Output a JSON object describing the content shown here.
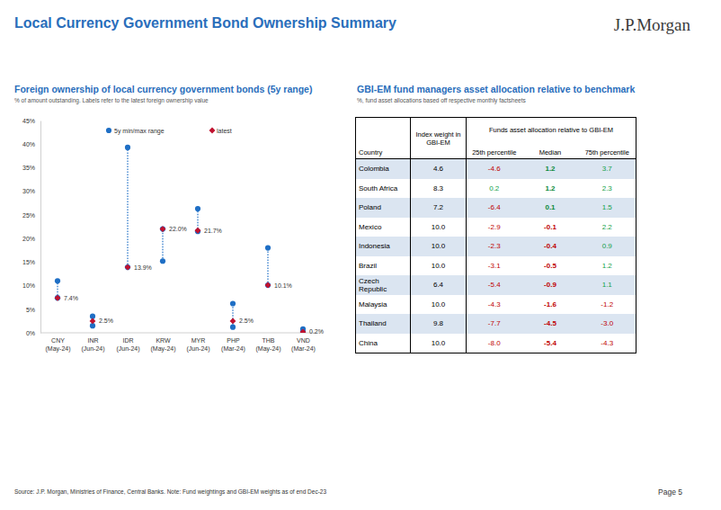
{
  "page": {
    "title": "Local Currency Government Bond Ownership Summary",
    "logo": "J.P.Morgan",
    "source": "Source: J.P. Morgan, Ministries of Finance, Central Banks. Note: Fund weightings and GBI-EM weights as of end Dec-23",
    "page_number": "Page 5"
  },
  "chart_data": {
    "type": "range",
    "title": "Foreign ownership of local currency government bonds (5y range)",
    "subtitle": "% of amount outstanding. Labels refer to the latest foreign ownership value",
    "categories": [
      "CNY (May-24)",
      "INR (Jun-24)",
      "IDR (Jun-24)",
      "KRW (May-24)",
      "MYR (Jun-24)",
      "PHP (Mar-24)",
      "THB (May-24)",
      "VND (Mar-24)"
    ],
    "series": [
      {
        "name": "5y min/max range",
        "color": "#1f6fc5",
        "marker": "circle",
        "line_style": "dotted",
        "low": [
          7.4,
          1.5,
          13.9,
          15.2,
          21.5,
          1.2,
          10.1,
          0.2
        ],
        "high": [
          11.0,
          3.5,
          39.3,
          22.0,
          26.3,
          6.2,
          18.0,
          0.8
        ]
      },
      {
        "name": "latest",
        "color": "#c0122f",
        "marker": "diamond",
        "values": [
          7.4,
          2.5,
          13.9,
          22.0,
          21.7,
          2.5,
          10.1,
          0.2
        ],
        "value_labels": [
          "7.4%",
          "2.5%",
          "13.9%",
          "22.0%",
          "21.7%",
          "2.5%",
          "10.1%",
          "0.2%"
        ]
      }
    ],
    "ylim": [
      0,
      45
    ],
    "yticks": [
      {
        "value": 0,
        "label": "0%"
      },
      {
        "value": 5,
        "label": "5%"
      },
      {
        "value": 10,
        "label": "10%"
      },
      {
        "value": 15,
        "label": "15%"
      },
      {
        "value": 20,
        "label": "20%"
      },
      {
        "value": 25,
        "label": "25%"
      },
      {
        "value": 30,
        "label": "30%"
      },
      {
        "value": 35,
        "label": "35%"
      },
      {
        "value": 40,
        "label": "40%"
      },
      {
        "value": 45,
        "label": "45%"
      }
    ],
    "grid": false,
    "legend": "top",
    "data_labels": true
  },
  "table": {
    "title": "GBI-EM fund managers asset allocation relative to benchmark",
    "subtitle": "%, fund asset allocations based off respective monthly factsheets",
    "group_header": "Funds asset allocation relative to GBI-EM",
    "columns": [
      "Country",
      "Index weight in GBI-EM",
      "25th percentile",
      "Median",
      "75th percentile"
    ],
    "rows": [
      [
        "Colombia",
        "4.6",
        "-4.6",
        "1.2",
        "3.7"
      ],
      [
        "South Africa",
        "8.3",
        "0.2",
        "1.2",
        "2.3"
      ],
      [
        "Poland",
        "7.2",
        "-6.4",
        "0.1",
        "1.5"
      ],
      [
        "Mexico",
        "10.0",
        "-2.9",
        "-0.1",
        "2.2"
      ],
      [
        "Indonesia",
        "10.0",
        "-2.3",
        "-0.4",
        "0.9"
      ],
      [
        "Brazil",
        "10.0",
        "-3.1",
        "-0.5",
        "1.2"
      ],
      [
        "Czech Republic",
        "6.4",
        "-5.4",
        "-0.9",
        "1.1"
      ],
      [
        "Malaysia",
        "10.0",
        "-4.3",
        "-1.6",
        "-1.2"
      ],
      [
        "Thailand",
        "9.8",
        "-7.7",
        "-4.5",
        "-3.0"
      ],
      [
        "China",
        "10.0",
        "-8.0",
        "-5.4",
        "-4.3"
      ]
    ]
  }
}
